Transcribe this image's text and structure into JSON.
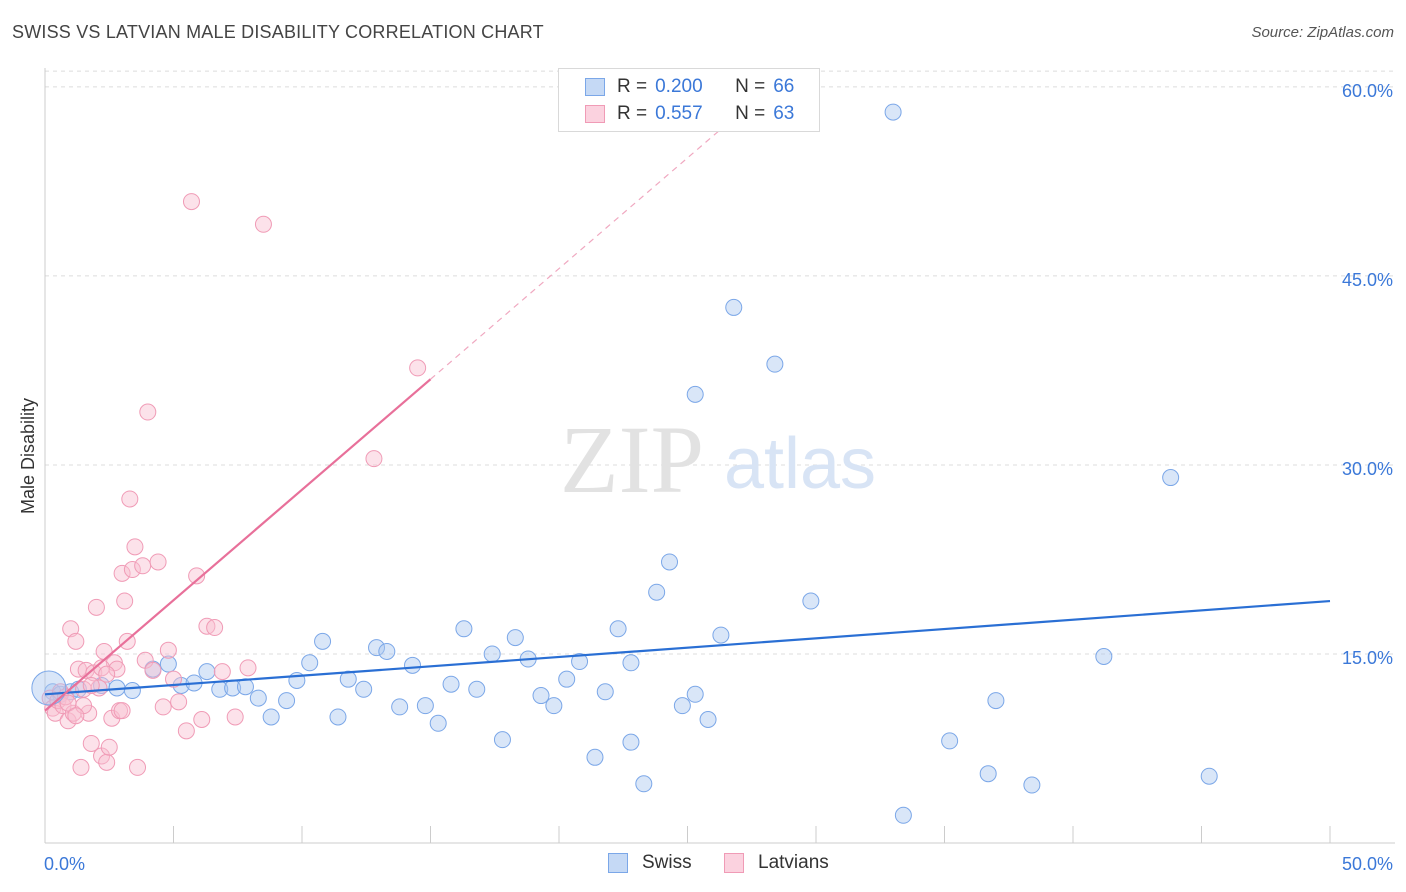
{
  "title": "SWISS VS LATVIAN MALE DISABILITY CORRELATION CHART",
  "source": "Source: ZipAtlas.com",
  "watermark": {
    "zip": "ZIP",
    "atlas": "atlas"
  },
  "legend_top": [
    {
      "r_label": "R =",
      "r_value": "0.200",
      "n_label": "N =",
      "n_value": "66",
      "color": "#7ba7e8"
    },
    {
      "r_label": "R =",
      "r_value": "0.557",
      "n_label": "N =",
      "n_value": "63",
      "color": "#f09bb6"
    }
  ],
  "legend_bottom": [
    {
      "label": "Swiss",
      "color": "#7ba7e8"
    },
    {
      "label": "Latvians",
      "color": "#f09bb6"
    }
  ],
  "chart_data": {
    "type": "scatter",
    "title": "SWISS VS LATVIAN MALE DISABILITY CORRELATION CHART",
    "xlabel": "",
    "ylabel": "Male Disability",
    "xlim": [
      0,
      50
    ],
    "ylim": [
      0,
      61.5
    ],
    "x_tick_labels": [
      "0.0%",
      "50.0%"
    ],
    "y_ticks": [
      15,
      30,
      45,
      60
    ],
    "y_tick_labels": [
      "15.0%",
      "30.0%",
      "45.0%",
      "60.0%"
    ],
    "grid": true,
    "series": [
      {
        "name": "Swiss",
        "color": "#7ba7e8",
        "trend_color": "#2a6fd4",
        "trend": {
          "x0": 0,
          "y0": 11.8,
          "x1": 50,
          "y1": 19.2
        },
        "points": [
          [
            0.3,
            12.0
          ],
          [
            0.6,
            11.8
          ],
          [
            1.0,
            12.0
          ],
          [
            1.3,
            12.2
          ],
          [
            2.2,
            12.5
          ],
          [
            2.8,
            12.3
          ],
          [
            3.4,
            12.1
          ],
          [
            4.2,
            13.8
          ],
          [
            4.8,
            14.2
          ],
          [
            5.3,
            12.5
          ],
          [
            5.8,
            12.7
          ],
          [
            6.3,
            13.6
          ],
          [
            6.8,
            12.2
          ],
          [
            7.3,
            12.3
          ],
          [
            7.8,
            12.4
          ],
          [
            8.3,
            11.5
          ],
          [
            8.8,
            10.0
          ],
          [
            9.4,
            11.3
          ],
          [
            9.8,
            12.9
          ],
          [
            10.3,
            14.3
          ],
          [
            10.8,
            16.0
          ],
          [
            11.4,
            10.0
          ],
          [
            11.8,
            13.0
          ],
          [
            12.4,
            12.2
          ],
          [
            12.9,
            15.5
          ],
          [
            13.3,
            15.2
          ],
          [
            13.8,
            10.8
          ],
          [
            14.3,
            14.1
          ],
          [
            14.8,
            10.9
          ],
          [
            15.3,
            9.5
          ],
          [
            15.8,
            12.6
          ],
          [
            16.3,
            17.0
          ],
          [
            16.8,
            12.2
          ],
          [
            17.4,
            15.0
          ],
          [
            17.8,
            8.2
          ],
          [
            18.3,
            16.3
          ],
          [
            18.8,
            14.6
          ],
          [
            19.3,
            11.7
          ],
          [
            19.8,
            10.9
          ],
          [
            20.3,
            13.0
          ],
          [
            20.8,
            14.4
          ],
          [
            21.4,
            6.8
          ],
          [
            21.8,
            12.0
          ],
          [
            22.3,
            17.0
          ],
          [
            22.8,
            8.0
          ],
          [
            23.3,
            4.7
          ],
          [
            23.8,
            19.9
          ],
          [
            24.3,
            22.3
          ],
          [
            24.8,
            10.9
          ],
          [
            25.3,
            11.8
          ],
          [
            25.8,
            9.8
          ],
          [
            26.3,
            16.5
          ],
          [
            26.8,
            42.5
          ],
          [
            28.4,
            38.0
          ],
          [
            29.8,
            19.2
          ],
          [
            33.0,
            58.0
          ],
          [
            33.4,
            2.2
          ],
          [
            35.2,
            8.1
          ],
          [
            36.7,
            5.5
          ],
          [
            37.0,
            11.3
          ],
          [
            38.4,
            4.6
          ],
          [
            41.2,
            14.8
          ],
          [
            43.8,
            29.0
          ],
          [
            45.3,
            5.3
          ],
          [
            25.3,
            35.6
          ],
          [
            22.8,
            14.3
          ]
        ]
      },
      {
        "name": "Latvians",
        "color": "#f09bb6",
        "trend_color": "#e8709a",
        "trend": {
          "x0": 0,
          "y0": 10.5,
          "x1": 15,
          "y1": 36.8
        },
        "trend_dashed": {
          "x0": 15,
          "y0": 36.8,
          "x1": 26.5,
          "y1": 57.0
        },
        "points": [
          [
            0.2,
            11.5
          ],
          [
            0.3,
            10.7
          ],
          [
            0.4,
            10.3
          ],
          [
            0.5,
            11.3
          ],
          [
            0.6,
            12.0
          ],
          [
            0.7,
            10.9
          ],
          [
            0.8,
            11.6
          ],
          [
            0.9,
            9.7
          ],
          [
            1.0,
            17.0
          ],
          [
            1.1,
            10.3
          ],
          [
            1.2,
            16.0
          ],
          [
            1.3,
            13.8
          ],
          [
            1.4,
            6.0
          ],
          [
            1.5,
            12.2
          ],
          [
            1.6,
            13.7
          ],
          [
            1.7,
            10.3
          ],
          [
            1.8,
            7.9
          ],
          [
            1.9,
            13.5
          ],
          [
            2.0,
            18.7
          ],
          [
            2.1,
            12.3
          ],
          [
            2.2,
            6.9
          ],
          [
            2.3,
            15.2
          ],
          [
            2.4,
            6.4
          ],
          [
            2.5,
            7.6
          ],
          [
            2.6,
            9.9
          ],
          [
            2.7,
            14.3
          ],
          [
            2.8,
            13.8
          ],
          [
            2.9,
            10.5
          ],
          [
            3.0,
            21.4
          ],
          [
            3.1,
            19.2
          ],
          [
            3.2,
            16.0
          ],
          [
            3.3,
            27.3
          ],
          [
            3.4,
            21.7
          ],
          [
            3.5,
            23.5
          ],
          [
            3.6,
            6.0
          ],
          [
            3.8,
            22.0
          ],
          [
            3.9,
            14.5
          ],
          [
            4.0,
            34.2
          ],
          [
            4.2,
            13.7
          ],
          [
            4.4,
            22.3
          ],
          [
            4.6,
            10.8
          ],
          [
            4.8,
            15.3
          ],
          [
            5.0,
            13.0
          ],
          [
            5.2,
            11.2
          ],
          [
            5.5,
            8.9
          ],
          [
            5.7,
            50.9
          ],
          [
            5.9,
            21.2
          ],
          [
            6.1,
            9.8
          ],
          [
            6.3,
            17.2
          ],
          [
            6.6,
            17.1
          ],
          [
            6.9,
            13.6
          ],
          [
            7.4,
            10.0
          ],
          [
            7.9,
            13.9
          ],
          [
            8.5,
            49.1
          ],
          [
            12.8,
            30.5
          ],
          [
            14.5,
            37.7
          ],
          [
            1.5,
            10.9
          ],
          [
            2.2,
            13.9
          ],
          [
            0.9,
            11.1
          ],
          [
            1.2,
            10.1
          ],
          [
            3.0,
            10.5
          ],
          [
            1.8,
            12.5
          ],
          [
            2.4,
            13.4
          ]
        ]
      }
    ]
  }
}
